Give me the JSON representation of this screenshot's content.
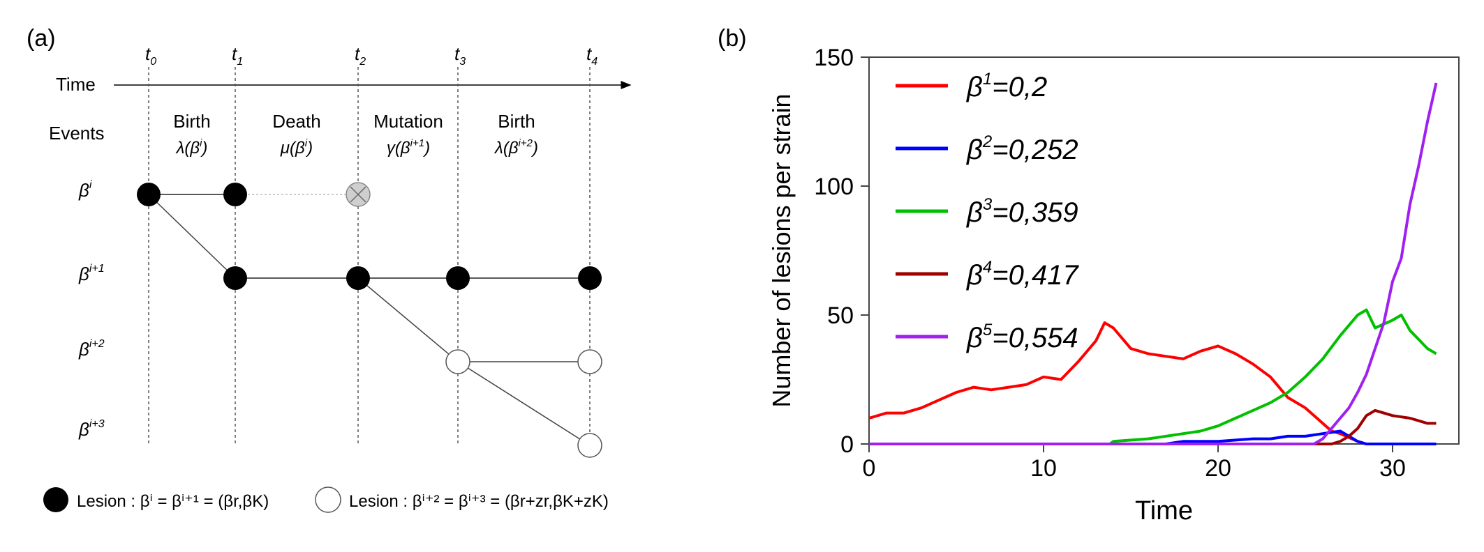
{
  "panel_a": {
    "label": "(a)",
    "time_label": "Time",
    "events_label": "Events",
    "ticks": [
      {
        "base": "t",
        "sub": "0"
      },
      {
        "base": "t",
        "sub": "1"
      },
      {
        "base": "t",
        "sub": "2"
      },
      {
        "base": "t",
        "sub": "3"
      },
      {
        "base": "t",
        "sub": "4"
      }
    ],
    "events": [
      {
        "name": "Birth",
        "rate_pre": "λ(β",
        "rate_sup": "i",
        "rate_post": ")"
      },
      {
        "name": "Death",
        "rate_pre": "μ(β",
        "rate_sup": "i",
        "rate_post": ")"
      },
      {
        "name": "Mutation",
        "rate_pre": "γ(β",
        "rate_sup": "i+1",
        "rate_post": ")"
      },
      {
        "name": "Birth",
        "rate_pre": "λ(β",
        "rate_sup": "i+2",
        "rate_post": ")"
      }
    ],
    "strains": [
      {
        "base": "β",
        "sup": "i"
      },
      {
        "base": "β",
        "sup": "i+1"
      },
      {
        "base": "β",
        "sup": "i+2"
      },
      {
        "base": "β",
        "sup": "i+3"
      }
    ],
    "legend": [
      {
        "style": "filled",
        "text": "Lesion : βⁱ = βⁱ⁺¹ = (βr,βK)"
      },
      {
        "style": "open",
        "text": "Lesion : βⁱ⁺² = βⁱ⁺³ = (βr+zr,βK+zK)"
      }
    ],
    "colors": {
      "filled": "#000000",
      "open": "#ffffff",
      "dead": "#cfcfcf"
    }
  },
  "panel_b": {
    "label": "(b)",
    "chart_data": {
      "type": "line",
      "title": "",
      "xlabel": "Time",
      "ylabel": "Number of lesions per strain",
      "xlim": [
        0,
        33.8
      ],
      "ylim": [
        0,
        150
      ],
      "xticks": [
        0,
        10,
        20,
        30
      ],
      "yticks": [
        0,
        50,
        100,
        150
      ],
      "legend_position": "top-left",
      "series": [
        {
          "name": "β¹=0,2",
          "base": "β",
          "sup": "1",
          "value_text": "=0,2",
          "color": "#ff0000",
          "x": [
            0,
            1,
            2,
            3,
            4,
            5,
            6,
            7,
            8,
            9,
            10,
            11,
            12,
            13,
            13.5,
            14,
            15,
            16,
            17,
            18,
            19,
            20,
            21,
            22,
            23,
            24,
            25,
            26,
            26.5,
            27,
            28,
            28.5
          ],
          "y": [
            10,
            12,
            12,
            14,
            17,
            20,
            22,
            21,
            22,
            23,
            26,
            25,
            32,
            40,
            47,
            45,
            37,
            35,
            34,
            33,
            36,
            38,
            35,
            31,
            26,
            18,
            14,
            8,
            5,
            4,
            1,
            0
          ]
        },
        {
          "name": "β²=0,252",
          "base": "β",
          "sup": "2",
          "value_text": "=0,252",
          "color": "#0000ff",
          "x": [
            0,
            17,
            18,
            20,
            22,
            23,
            24,
            25,
            26,
            27,
            27.5,
            28,
            28.5,
            32.5
          ],
          "y": [
            0,
            0,
            1,
            1,
            2,
            2,
            3,
            3,
            4,
            5,
            3,
            1,
            0,
            0
          ]
        },
        {
          "name": "β³=0,359",
          "base": "β",
          "sup": "3",
          "value_text": "=0,359",
          "color": "#00c000",
          "x": [
            0,
            13.8,
            14,
            16,
            18,
            19,
            20,
            21,
            22,
            23,
            24,
            25,
            26,
            27,
            28,
            28.5,
            29,
            30,
            30.5,
            31,
            32,
            32.5
          ],
          "y": [
            0,
            0,
            1,
            2,
            4,
            5,
            7,
            10,
            13,
            16,
            20,
            26,
            33,
            42,
            50,
            52,
            45,
            48,
            50,
            44,
            37,
            35
          ]
        },
        {
          "name": "β⁴=0,417",
          "base": "β",
          "sup": "4",
          "value_text": "=0,417",
          "color": "#a00000",
          "x": [
            0,
            26.5,
            27,
            27.5,
            28,
            28.5,
            29,
            29.5,
            30,
            31,
            32,
            32.5
          ],
          "y": [
            0,
            0,
            1,
            3,
            6,
            11,
            13,
            12,
            11,
            10,
            8,
            8
          ]
        },
        {
          "name": "β⁵=0,554",
          "base": "β",
          "sup": "5",
          "value_text": "=0,554",
          "color": "#a020f0",
          "x": [
            0,
            25.5,
            26,
            26.5,
            27,
            27.5,
            28,
            28.5,
            29,
            29.5,
            30,
            30.5,
            31,
            31.5,
            32,
            32.5
          ],
          "y": [
            0,
            0,
            2,
            6,
            10,
            14,
            20,
            27,
            37,
            47,
            63,
            72,
            93,
            108,
            125,
            140
          ]
        }
      ]
    }
  }
}
